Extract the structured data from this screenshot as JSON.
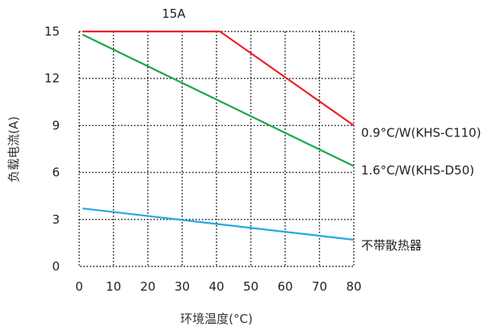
{
  "chart_data": {
    "type": "line",
    "title": "",
    "xlabel": "环境温度(°C)",
    "ylabel": "负载电流(A)",
    "xlim": [
      0,
      80
    ],
    "ylim": [
      0,
      15
    ],
    "x_ticks": [
      "0",
      "10",
      "20",
      "30",
      "40",
      "50",
      "60",
      "70",
      "80"
    ],
    "y_ticks": [
      "0",
      "3",
      "6",
      "9",
      "12",
      "15"
    ],
    "grid": true,
    "grid_style": "dotted",
    "series": [
      {
        "name": "0.9°C/W(KHS-C110)",
        "color": "#e8222a",
        "points": [
          [
            1,
            15
          ],
          [
            41,
            15
          ],
          [
            80,
            9
          ]
        ]
      },
      {
        "name": "1.6°C/W(KHS-D50)",
        "color": "#1ea84a",
        "points": [
          [
            1,
            14.8
          ],
          [
            80,
            6.4
          ]
        ]
      },
      {
        "name": "不带散热器",
        "color": "#27a8e0",
        "points": [
          [
            1,
            3.7
          ],
          [
            80,
            1.7
          ]
        ]
      }
    ],
    "annotations": [
      {
        "text": "15A"
      }
    ]
  }
}
